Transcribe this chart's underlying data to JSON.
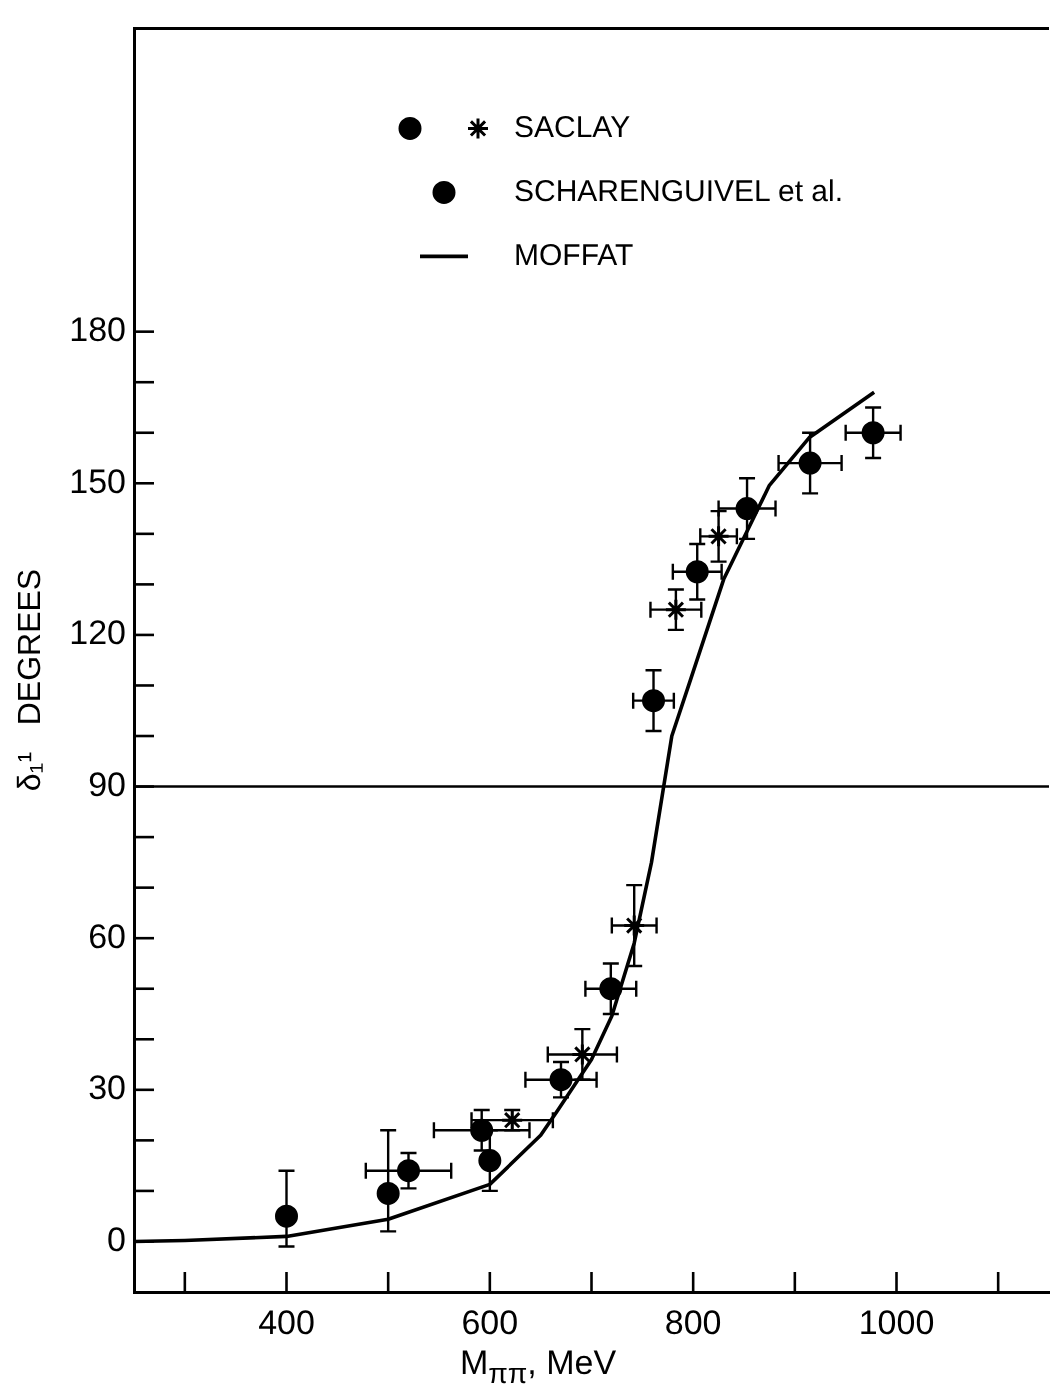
{
  "chart_data": {
    "type": "scatter",
    "xlabel": "M$_{ππ}$, MeV",
    "ylabel": "δ₁¹   DEGREES",
    "xlim": [
      250,
      1150
    ],
    "xticks": [
      {
        "value": 300,
        "label": null
      },
      400,
      {
        "value": 500,
        "label": null
      },
      600,
      {
        "value": 700,
        "label": null
      },
      800,
      {
        "value": 900,
        "label": null
      },
      1000,
      {
        "value": 1100,
        "label": null
      }
    ],
    "ylim": [
      -10,
      240
    ],
    "yticks": [
      0,
      {
        "value": 10,
        "label": null
      },
      {
        "value": 20,
        "label": null
      },
      30,
      {
        "value": 40,
        "label": null
      },
      {
        "value": 50,
        "label": null
      },
      60,
      {
        "value": 70,
        "label": null
      },
      {
        "value": 80,
        "label": null
      },
      90,
      {
        "value": 100,
        "label": null
      },
      {
        "value": 110,
        "label": null
      },
      120,
      {
        "value": 130,
        "label": null
      },
      {
        "value": 140,
        "label": null
      },
      150,
      {
        "value": 160,
        "label": null
      },
      {
        "value": 170,
        "label": null
      },
      180
    ],
    "legend": "top",
    "ref_lines": [
      {
        "axis": "y",
        "value": 90
      }
    ],
    "series": [
      {
        "name": "SACLAY",
        "type": "scatter",
        "marker": "circle",
        "color": "#000000",
        "x": [
          400,
          500,
          600
        ],
        "values": [
          5,
          9.5,
          16
        ],
        "errors": [
          [
            -1,
            14
          ],
          [
            2,
            22
          ],
          [
            10,
            22
          ]
        ]
      },
      {
        "type": "scatter",
        "marker": "cross",
        "color": "#000000",
        "x": [
          622,
          691,
          742,
          783,
          825
        ],
        "values": [
          24,
          37,
          62.5,
          125,
          139.5
        ],
        "errors": [
          2,
          5,
          8,
          4,
          5
        ],
        "xerrors": [
          40,
          34,
          22,
          25,
          18
        ]
      },
      {
        "name": "SCHARENGUIVEL et al.",
        "type": "scatter",
        "marker": "circle",
        "color": "#000000",
        "x": [
          520,
          592,
          670,
          719,
          761,
          804,
          853,
          915,
          977
        ],
        "values": [
          14,
          22,
          32,
          50,
          107,
          132.5,
          145,
          154,
          160
        ],
        "errors": [
          3.5,
          4,
          3.5,
          5,
          6,
          5.5,
          6,
          6,
          5
        ],
        "xerrors": [
          42,
          47,
          35,
          25,
          20,
          24,
          28,
          31,
          27
        ]
      },
      {
        "name": "MOFFAT",
        "type": "line",
        "marker": "none",
        "line_style": "solid",
        "color": "#000000",
        "x": [
          250,
          300,
          400,
          500,
          600,
          650,
          667,
          700,
          720,
          742,
          759,
          771,
          779,
          798,
          830,
          875,
          914,
          978
        ],
        "values": [
          0,
          0.2,
          1,
          4.4,
          11.3,
          21,
          26,
          36,
          44.6,
          59,
          75,
          90,
          100,
          111.5,
          131,
          149.6,
          159,
          168
        ]
      }
    ]
  }
}
